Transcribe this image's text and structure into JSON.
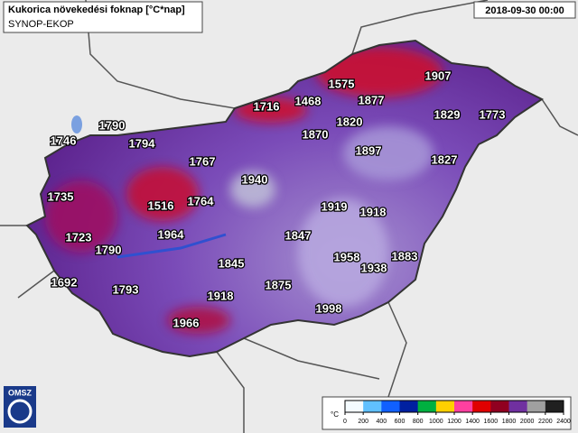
{
  "header": {
    "title": "Kukorica növekedési foknap [°C*nap]",
    "subtitle": "SYNOP-EKOP",
    "date": "2018-09-30 00:00"
  },
  "stations": [
    1907,
    1575,
    1877,
    1716,
    1468,
    1829,
    1773,
    1820,
    1790,
    1870,
    1746,
    1794,
    1897,
    1827,
    1767,
    1940,
    1735,
    1516,
    1764,
    1919,
    1918,
    1723,
    1964,
    1847,
    1790,
    1958,
    1883,
    1938,
    1845,
    1692,
    1793,
    1875,
    1918,
    1998,
    1966
  ],
  "legend": {
    "unit": "°C",
    "ticks": [
      0,
      200,
      400,
      600,
      800,
      1000,
      1200,
      1400,
      1600,
      1800,
      2000,
      2200,
      2400
    ],
    "colors": [
      "#f4fbff",
      "#60c0ff",
      "#1060ff",
      "#0020a0",
      "#00b040",
      "#ffd000",
      "#ff40a0",
      "#e00000",
      "#900020",
      "#7030a0",
      "#a0a0a0",
      "#202020"
    ]
  },
  "logo": "OMSZ"
}
